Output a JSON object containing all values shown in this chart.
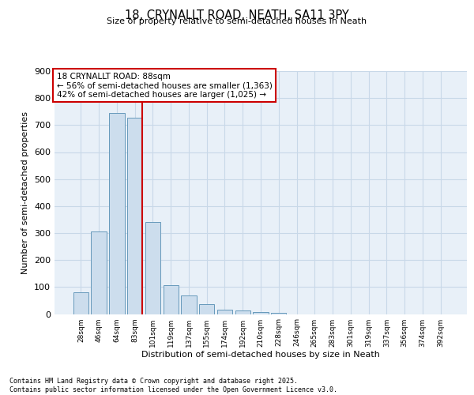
{
  "title": "18, CRYNALLT ROAD, NEATH, SA11 3PY",
  "subtitle": "Size of property relative to semi-detached houses in Neath",
  "xlabel": "Distribution of semi-detached houses by size in Neath",
  "ylabel": "Number of semi-detached properties",
  "categories": [
    "28sqm",
    "46sqm",
    "64sqm",
    "83sqm",
    "101sqm",
    "119sqm",
    "137sqm",
    "155sqm",
    "174sqm",
    "192sqm",
    "210sqm",
    "228sqm",
    "246sqm",
    "265sqm",
    "283sqm",
    "301sqm",
    "319sqm",
    "337sqm",
    "356sqm",
    "374sqm",
    "392sqm"
  ],
  "values": [
    80,
    307,
    744,
    727,
    340,
    108,
    68,
    38,
    15,
    12,
    8,
    3,
    0,
    0,
    0,
    0,
    0,
    0,
    0,
    0,
    0
  ],
  "bar_color": "#ccdded",
  "bar_edge_color": "#6699bb",
  "annotation_line1": "18 CRYNALLT ROAD: 88sqm",
  "annotation_line2": "← 56% of semi-detached houses are smaller (1,363)",
  "annotation_line3": "42% of semi-detached houses are larger (1,025) →",
  "annotation_box_color": "#cc0000",
  "red_line_x": 3.43,
  "ylim": [
    0,
    900
  ],
  "yticks": [
    0,
    100,
    200,
    300,
    400,
    500,
    600,
    700,
    800,
    900
  ],
  "grid_color": "#c8d8e8",
  "background_color": "#e8f0f8",
  "footer_line1": "Contains HM Land Registry data © Crown copyright and database right 2025.",
  "footer_line2": "Contains public sector information licensed under the Open Government Licence v3.0."
}
